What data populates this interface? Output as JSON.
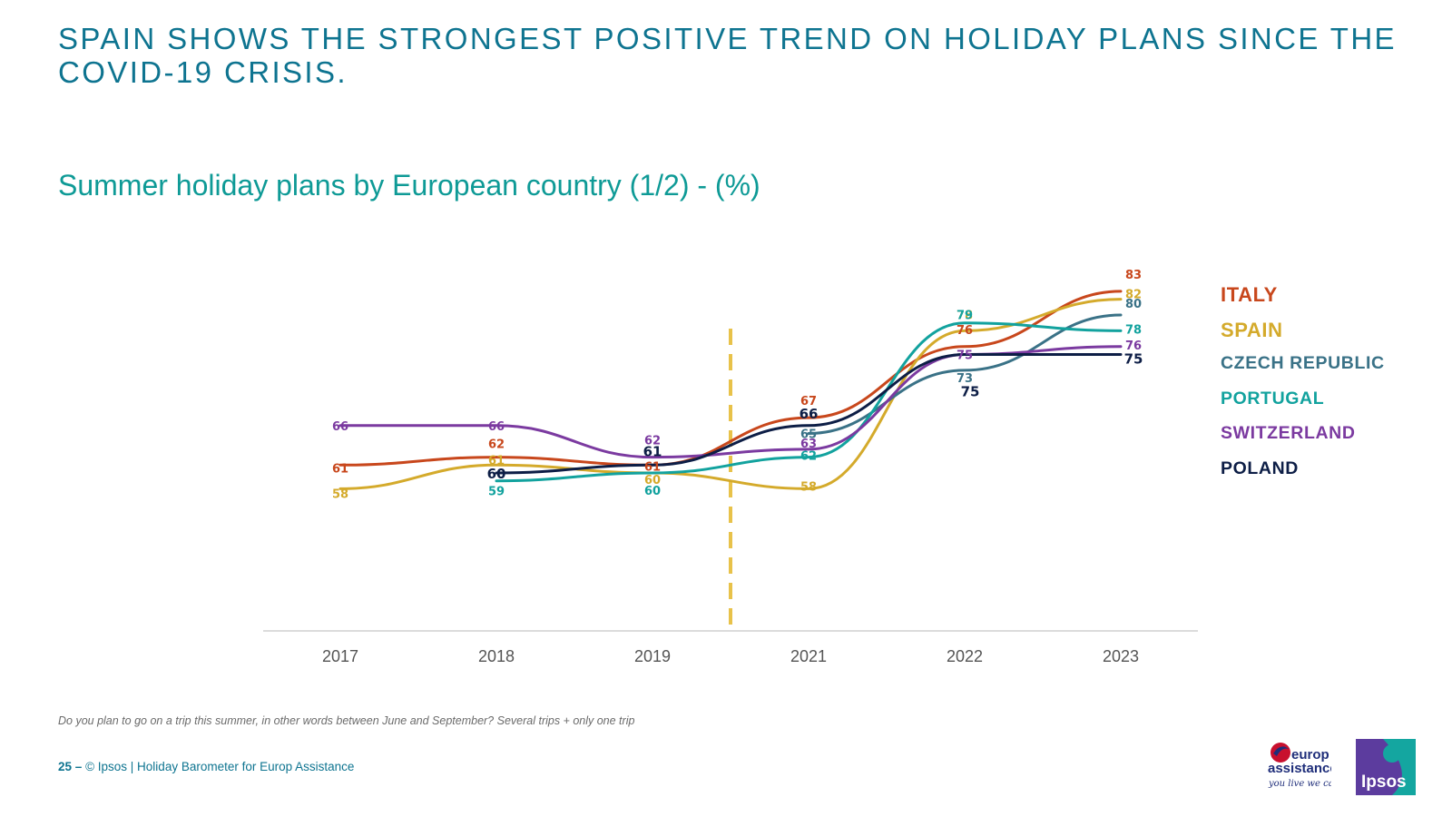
{
  "headline": "SPAIN SHOWS THE STRONGEST POSITIVE TREND ON HOLIDAY PLANS SINCE THE COVID-19 CRISIS.",
  "subtitle": "Summer holiday plans by European country (1/2) - (%)",
  "chart_data": {
    "type": "line",
    "title": "Summer holiday plans by European country (1/2) - (%)",
    "categories": [
      "2017",
      "2018",
      "2019",
      "2021",
      "2022",
      "2023"
    ],
    "series": [
      {
        "name": "ITALY",
        "color": "#C8471C",
        "values": [
          61,
          62,
          61,
          67,
          76,
          83
        ]
      },
      {
        "name": "SPAIN",
        "color": "#D4AA2B",
        "values": [
          58,
          61,
          60,
          58,
          78,
          82
        ]
      },
      {
        "name": "CZECH REPUBLIC",
        "color": "#3A7287",
        "values": [
          null,
          null,
          null,
          65,
          73,
          80
        ]
      },
      {
        "name": "PORTUGAL",
        "color": "#12A29E",
        "values": [
          null,
          59,
          60,
          62,
          79,
          78
        ]
      },
      {
        "name": "SWITZERLAND",
        "color": "#7B3AA0",
        "values": [
          66,
          66,
          62,
          63,
          75,
          76
        ]
      },
      {
        "name": "POLAND",
        "color": "#0D1E46",
        "values": [
          null,
          60,
          61,
          66,
          75,
          75
        ]
      }
    ],
    "ylim": [
      40,
      90
    ],
    "xlabel": "",
    "ylabel": "",
    "annotations": [
      "dashed vertical marker between 2019 and 2021 (COVID-19 crisis)"
    ],
    "legend_position": "right"
  },
  "footnote": "Do you plan to go on a trip this summer, in other words between June and September? Several trips + only one trip",
  "footer": {
    "page_number": "25",
    "separator": "–",
    "source": "© Ipsos | Holiday Barometer for Europ Assistance"
  },
  "logos": {
    "europ_assistance": {
      "line1": "europ",
      "line2": "assistance",
      "tagline": "you live we care"
    },
    "ipsos": {
      "name": "Ipsos"
    }
  }
}
